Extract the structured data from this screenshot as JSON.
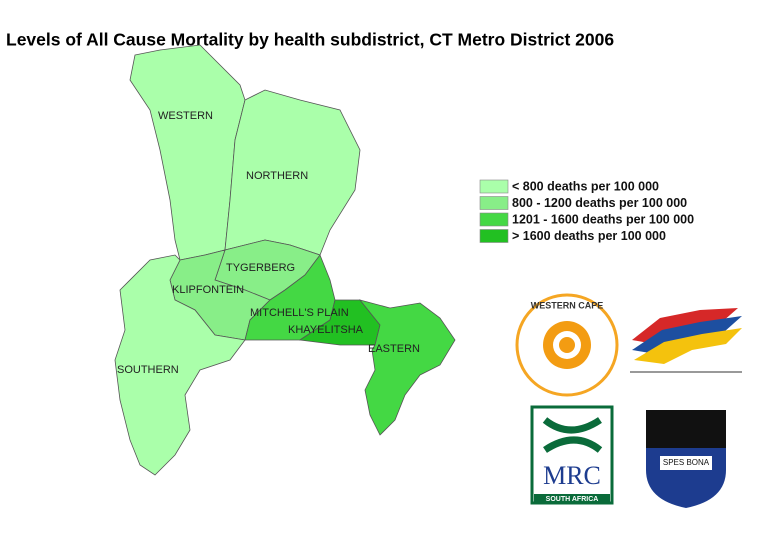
{
  "title": "Levels of All Cause Mortality by health subdistrict, CT Metro District 2006",
  "legend": [
    {
      "label": "< 800 deaths per 100 000",
      "color": "#aaffaa"
    },
    {
      "label": "800 - 1200 deaths per 100 000",
      "color": "#88ee88"
    },
    {
      "label": "1201 - 1600 deaths per 100 000",
      "color": "#44d844"
    },
    {
      "label": "> 1600 deaths per 100 000",
      "color": "#22c022"
    }
  ],
  "regions": [
    {
      "name": "WESTERN",
      "color": "#aaffaa"
    },
    {
      "name": "NORTHERN",
      "color": "#aaffaa"
    },
    {
      "name": "TYGERBERG",
      "color": "#88ee88"
    },
    {
      "name": "KLIPFONTEIN",
      "color": "#88ee88"
    },
    {
      "name": "MITCHELL'S PLAIN",
      "color": "#44d844"
    },
    {
      "name": "KHAYELITSHA",
      "color": "#22c022"
    },
    {
      "name": "EASTERN",
      "color": "#44d844"
    },
    {
      "name": "SOUTHERN",
      "color": "#aaffaa"
    }
  ],
  "logos": {
    "western_cape": "WESTERN CAPE",
    "mrc": "MRC",
    "mrc_sub": "SOUTH AFRICA",
    "uct": "SPES BONA"
  }
}
